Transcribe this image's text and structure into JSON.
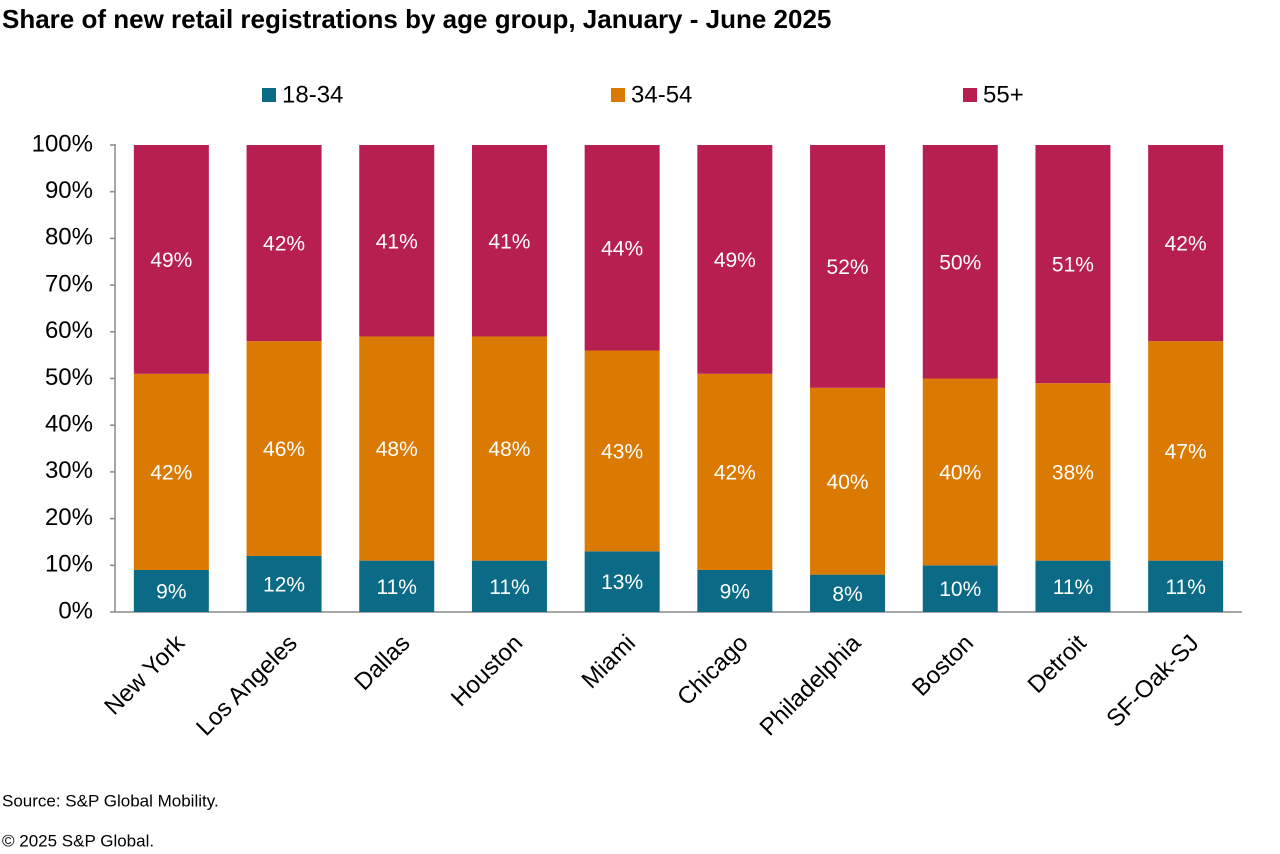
{
  "chart_data": {
    "type": "stacked_bar",
    "title": "Share of new retail registrations by age group, January - June 2025",
    "categories": [
      "New York",
      "Los Angeles",
      "Dallas",
      "Houston",
      "Miami",
      "Chicago",
      "Philadelphia",
      "Boston",
      "Detroit",
      "SF-Oak-SJ"
    ],
    "series": [
      {
        "name": "18-34",
        "color": "#0b6b87",
        "values": [
          9,
          12,
          11,
          11,
          13,
          9,
          8,
          10,
          11,
          11
        ],
        "value_labels": [
          "9%",
          "12%",
          "11%",
          "11%",
          "13%",
          "9%",
          "8%",
          "10%",
          "11%",
          "11%"
        ]
      },
      {
        "name": "34-54",
        "color": "#da7a03",
        "values": [
          42,
          46,
          48,
          48,
          43,
          42,
          40,
          40,
          38,
          47
        ],
        "value_labels": [
          "42%",
          "46%",
          "48%",
          "48%",
          "43%",
          "42%",
          "40%",
          "40%",
          "38%",
          "47%"
        ]
      },
      {
        "name": "55+",
        "color": "#b81f51",
        "values": [
          49,
          42,
          41,
          41,
          44,
          49,
          52,
          50,
          51,
          42
        ],
        "value_labels": [
          "49%",
          "42%",
          "41%",
          "41%",
          "44%",
          "49%",
          "52%",
          "50%",
          "51%",
          "42%"
        ]
      }
    ],
    "ylim": [
      0,
      100
    ],
    "yticks": [
      {
        "value": 0,
        "label": "0%"
      },
      {
        "value": 10,
        "label": "10%"
      },
      {
        "value": 20,
        "label": "20%"
      },
      {
        "value": 30,
        "label": "30%"
      },
      {
        "value": 40,
        "label": "40%"
      },
      {
        "value": 50,
        "label": "50%"
      },
      {
        "value": 60,
        "label": "60%"
      },
      {
        "value": 70,
        "label": "70%"
      },
      {
        "value": 80,
        "label": "80%"
      },
      {
        "value": 90,
        "label": "90%"
      },
      {
        "value": 100,
        "label": "100%"
      }
    ],
    "grid": false,
    "legend": "top",
    "source": "Source: S&P Global Mobility.",
    "copyright": "© 2025 S&P Global."
  }
}
